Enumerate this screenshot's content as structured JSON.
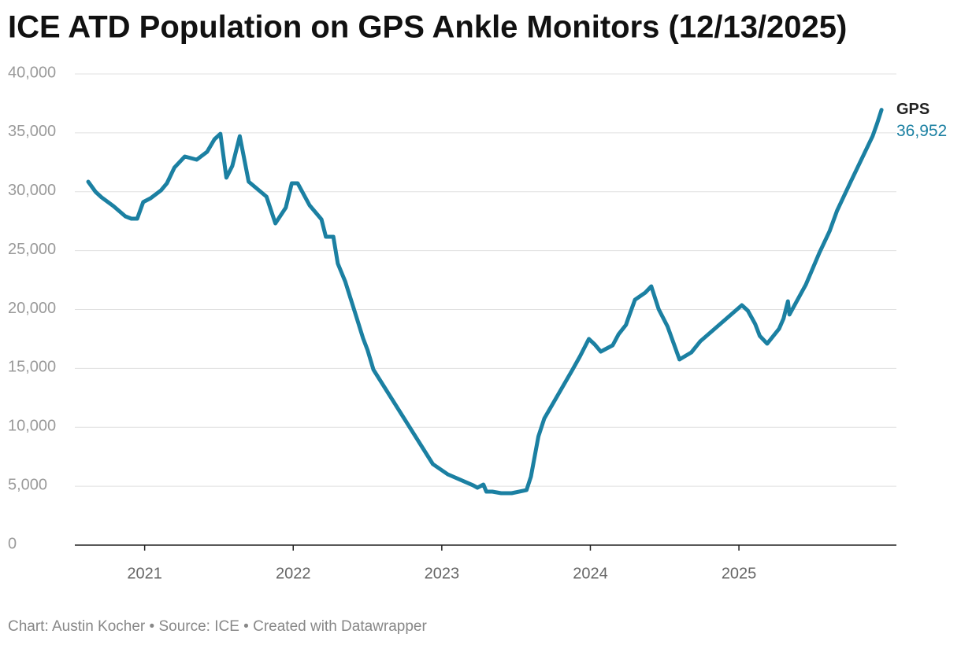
{
  "chart_data": {
    "type": "line",
    "title": "ICE ATD Population on GPS Ankle Monitors (12/13/2025)",
    "source": "Chart: Austin Kocher • Source: ICE • Created with Datawrapper",
    "x": [
      2020.62,
      2020.67,
      2020.71,
      2020.79,
      2020.87,
      2020.91,
      2020.95,
      2020.99,
      2021.04,
      2021.11,
      2021.15,
      2021.2,
      2021.27,
      2021.35,
      2021.42,
      2021.47,
      2021.51,
      2021.55,
      2021.59,
      2021.64,
      2021.7,
      2021.82,
      2021.88,
      2021.95,
      2021.99,
      2022.03,
      2022.11,
      2022.19,
      2022.22,
      2022.27,
      2022.3,
      2022.35,
      2022.42,
      2022.47,
      2022.5,
      2022.54,
      2022.94,
      2023.04,
      2023.21,
      2023.24,
      2023.28,
      2023.3,
      2023.34,
      2023.4,
      2023.47,
      2023.57,
      2023.6,
      2023.65,
      2023.69,
      2023.88,
      2023.93,
      2023.99,
      2024.03,
      2024.07,
      2024.15,
      2024.19,
      2024.24,
      2024.26,
      2024.3,
      2024.37,
      2024.41,
      2024.46,
      2024.52,
      2024.6,
      2024.68,
      2024.74,
      2025.02,
      2025.06,
      2025.11,
      2025.14,
      2025.19,
      2025.27,
      2025.3,
      2025.33,
      2025.34,
      2025.45,
      2025.54,
      2025.61,
      2025.66,
      2025.75,
      2025.9,
      2025.93,
      2025.96
    ],
    "series": [
      {
        "name": "GPS",
        "color": "#1b80a2",
        "values": [
          30850,
          29980,
          29520,
          28780,
          27910,
          27710,
          27710,
          29120,
          29450,
          30120,
          30720,
          32050,
          32990,
          32720,
          33390,
          34460,
          34920,
          31190,
          32190,
          34720,
          30850,
          29580,
          27310,
          28650,
          30720,
          30720,
          28850,
          27650,
          26180,
          26180,
          23910,
          22370,
          19570,
          17560,
          16560,
          14890,
          6880,
          6010,
          5080,
          4870,
          5140,
          4540,
          4540,
          4410,
          4410,
          4670,
          5810,
          9220,
          10750,
          14890,
          16030,
          17500,
          17030,
          16430,
          16960,
          17900,
          18700,
          19430,
          20830,
          21440,
          21970,
          20030,
          18560,
          15760,
          16360,
          17300,
          20370,
          19900,
          18760,
          17760,
          17100,
          18360,
          19230,
          20700,
          19570,
          22100,
          24770,
          26640,
          28380,
          30780,
          34720,
          35790,
          36952
        ],
        "value_labels": [
          null,
          null,
          null,
          null,
          null,
          null,
          null,
          null,
          null,
          null,
          null,
          null,
          null,
          null,
          null,
          null,
          null,
          null,
          null,
          null,
          null,
          null,
          null,
          null,
          null,
          null,
          null,
          null,
          null,
          null,
          null,
          null,
          null,
          null,
          null,
          null,
          null,
          null,
          null,
          null,
          null,
          null,
          null,
          null,
          null,
          null,
          null,
          null,
          null,
          null,
          null,
          null,
          null,
          null,
          null,
          null,
          null,
          null,
          null,
          null,
          null,
          null,
          null,
          null,
          null,
          null,
          null,
          null,
          null,
          null,
          null,
          null,
          null,
          null,
          null,
          null,
          null,
          null,
          null,
          null,
          null,
          null,
          "36,952"
        ]
      }
    ],
    "xlim": [
      2020.53,
      2026.06
    ],
    "xticks": [
      2021,
      2022,
      2023,
      2024,
      2025
    ],
    "ylim": [
      0,
      40000
    ],
    "yticks": [
      0,
      {
        "value": 5000,
        "label": "5,000"
      },
      {
        "value": 10000,
        "label": "10,000"
      },
      {
        "value": 15000,
        "label": "15,000"
      },
      {
        "value": 20000,
        "label": "20,000"
      },
      {
        "value": 25000,
        "label": "25,000"
      },
      {
        "value": 30000,
        "label": "30,000"
      },
      {
        "value": 35000,
        "label": "35,000"
      },
      {
        "value": 40000,
        "label": "40,000"
      }
    ],
    "grid": true
  }
}
